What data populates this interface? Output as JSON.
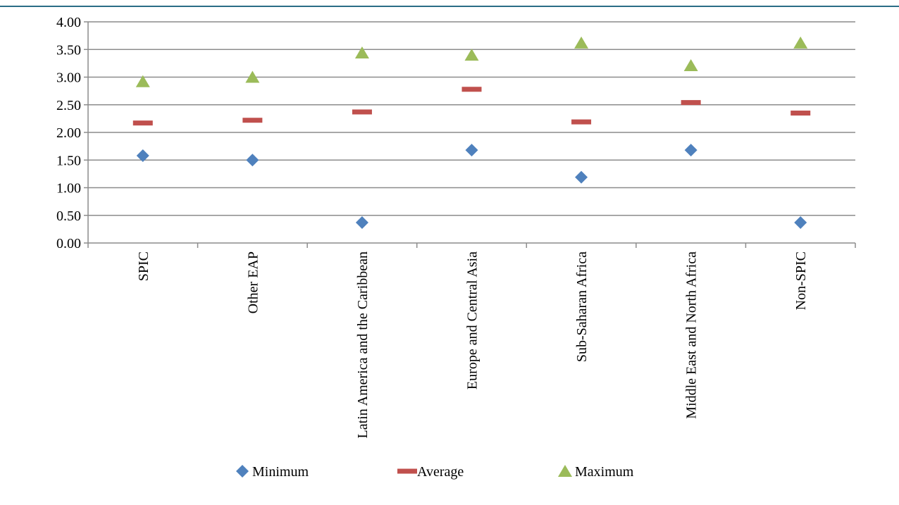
{
  "chart_data": {
    "type": "scatter",
    "title": "",
    "xlabel": "",
    "ylabel": "",
    "ylim": [
      0,
      4
    ],
    "y_ticks": [
      "0.00",
      "0.50",
      "1.00",
      "1.50",
      "2.00",
      "2.50",
      "3.00",
      "3.50",
      "4.00"
    ],
    "grid": true,
    "legend_position": "bottom",
    "categories": [
      "SPIC",
      "Other EAP",
      "Latin America and the Caribbean",
      "Europe and Central Asia",
      "Sub-Saharan Africa",
      "Middle East and North Africa",
      "Non-SPIC"
    ],
    "series": [
      {
        "name": "Minimum",
        "marker": "diamond",
        "color": "#4F81BD",
        "values": [
          1.58,
          1.5,
          0.37,
          1.68,
          1.19,
          1.68,
          0.37
        ]
      },
      {
        "name": "Average",
        "marker": "dash",
        "color": "#C0504D",
        "values": [
          2.17,
          2.22,
          2.37,
          2.78,
          2.19,
          2.54,
          2.35
        ]
      },
      {
        "name": "Maximum",
        "marker": "triangle",
        "color": "#9BBB59",
        "values": [
          2.92,
          3.0,
          3.44,
          3.4,
          3.62,
          3.21,
          3.62
        ]
      }
    ]
  }
}
